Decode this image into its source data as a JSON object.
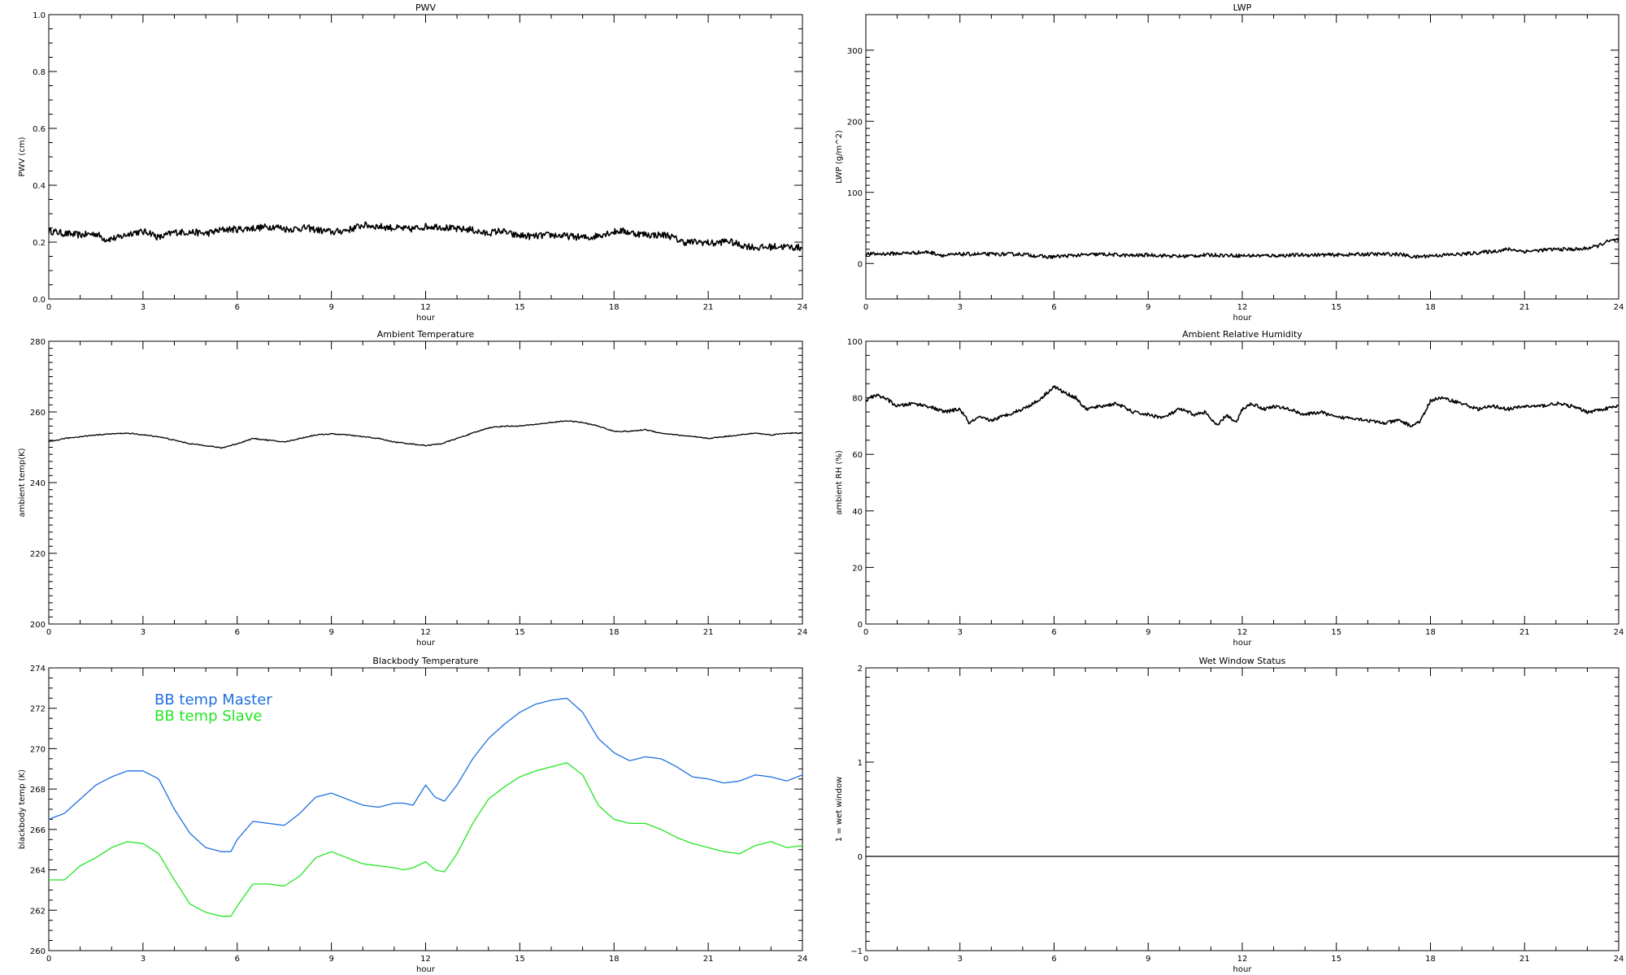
{
  "chart_data": [
    {
      "type": "line",
      "title": "PWV",
      "xlabel": "hour",
      "ylabel": "PWV (cm)",
      "xlim": [
        0,
        24
      ],
      "ylim": [
        0.0,
        1.0
      ],
      "xticks": [
        0,
        3,
        6,
        9,
        12,
        15,
        18,
        21,
        24
      ],
      "xtick_labels": [
        "0",
        "3",
        "6",
        "9",
        "12",
        "15",
        "18",
        "21",
        "24"
      ],
      "yticks": [
        0.0,
        0.2,
        0.4,
        0.6,
        0.8,
        1.0
      ],
      "ytick_labels": [
        "0.0",
        "0.2",
        "0.4",
        "0.6",
        "0.8",
        "1.0"
      ],
      "noise": 0.012,
      "series": [
        {
          "color": "#000000",
          "x": [
            0,
            0.5,
            1,
            1.5,
            1.8,
            2.2,
            2.7,
            3.2,
            3.5,
            4,
            4.6,
            5,
            5.6,
            6,
            6.6,
            7.2,
            7.6,
            8.2,
            8.7,
            9.1,
            9.6,
            10,
            10.5,
            11,
            11.5,
            12,
            12.4,
            13,
            13.4,
            13.9,
            14.4,
            14.8,
            15.4,
            16,
            16.6,
            17.2,
            17.7,
            18.2,
            18.7,
            19.2,
            19.7,
            20.2,
            20.8,
            21.2,
            21.6,
            22,
            22.6,
            23.2,
            24
          ],
          "y": [
            0.24,
            0.23,
            0.225,
            0.23,
            0.21,
            0.215,
            0.235,
            0.235,
            0.215,
            0.235,
            0.235,
            0.23,
            0.245,
            0.245,
            0.25,
            0.255,
            0.245,
            0.25,
            0.24,
            0.235,
            0.245,
            0.26,
            0.255,
            0.25,
            0.245,
            0.255,
            0.255,
            0.245,
            0.245,
            0.23,
            0.24,
            0.225,
            0.22,
            0.225,
            0.22,
            0.215,
            0.23,
            0.24,
            0.23,
            0.225,
            0.225,
            0.2,
            0.2,
            0.195,
            0.205,
            0.19,
            0.18,
            0.185,
            0.18
          ]
        }
      ]
    },
    {
      "type": "line",
      "title": "LWP",
      "xlabel": "hour",
      "ylabel": "LWP (g/m^2)",
      "xlim": [
        0,
        24
      ],
      "ylim": [
        -50,
        350
      ],
      "xticks": [
        0,
        3,
        6,
        9,
        12,
        15,
        18,
        21,
        24
      ],
      "xtick_labels": [
        "0",
        "3",
        "6",
        "9",
        "12",
        "15",
        "18",
        "21",
        "24"
      ],
      "yticks": [
        0,
        100,
        200,
        300
      ],
      "ytick_labels": [
        "0",
        "100",
        "200",
        "300"
      ],
      "noise": 2.5,
      "series": [
        {
          "color": "#000000",
          "x": [
            0,
            1,
            2,
            2.5,
            3,
            4,
            5,
            5.8,
            6.5,
            7.5,
            8.5,
            9,
            10,
            11,
            12,
            13,
            14,
            15,
            16,
            17,
            17.5,
            18,
            19,
            20,
            20.5,
            21,
            22,
            22.8,
            23.3,
            23.6,
            24
          ],
          "y": [
            13,
            14,
            16,
            11,
            13,
            13,
            13,
            9,
            11,
            13,
            11,
            12,
            10,
            12,
            11,
            11,
            12,
            12,
            13,
            13,
            9,
            11,
            13,
            17,
            20,
            17,
            20,
            20,
            24,
            30,
            34
          ]
        }
      ]
    },
    {
      "type": "line",
      "title": "Ambient Temperature",
      "xlabel": "hour",
      "ylabel": "ambient temp(K)",
      "xlim": [
        0,
        24
      ],
      "ylim": [
        200,
        280
      ],
      "xticks": [
        0,
        3,
        6,
        9,
        12,
        15,
        18,
        21,
        24
      ],
      "xtick_labels": [
        "0",
        "3",
        "6",
        "9",
        "12",
        "15",
        "18",
        "21",
        "24"
      ],
      "yticks": [
        200,
        220,
        240,
        260,
        280
      ],
      "ytick_labels": [
        "200",
        "220",
        "240",
        "260",
        "280"
      ],
      "noise": 0.15,
      "series": [
        {
          "color": "#000000",
          "x": [
            0,
            0.5,
            1,
            1.5,
            2,
            2.5,
            3,
            3.5,
            4,
            4.5,
            5,
            5.5,
            6,
            6.5,
            7,
            7.5,
            8,
            8.5,
            9,
            9.5,
            10,
            10.5,
            11,
            11.5,
            12,
            12.5,
            13,
            13.5,
            14,
            14.5,
            15,
            15.5,
            16,
            16.5,
            17,
            17.5,
            18,
            18.5,
            19,
            19.5,
            20,
            20.5,
            21,
            21.5,
            22,
            22.5,
            23,
            23.5,
            24
          ],
          "y": [
            251.5,
            252.5,
            253,
            253.5,
            253.8,
            254,
            253.5,
            253,
            252,
            251,
            250.5,
            249.8,
            251,
            252.5,
            252,
            251.5,
            252.5,
            253.5,
            253.8,
            253.5,
            253,
            252.5,
            251.5,
            251,
            250.5,
            251,
            252.5,
            254,
            255.5,
            256,
            256,
            256.5,
            257,
            257.5,
            257,
            256,
            254.5,
            254.5,
            255,
            254,
            253.5,
            253,
            252.5,
            253,
            253.5,
            254,
            253.5,
            254,
            254
          ]
        }
      ]
    },
    {
      "type": "line",
      "title": "Ambient Relative Humidity",
      "xlabel": "hour",
      "ylabel": "ambient RH (%)",
      "xlim": [
        0,
        24
      ],
      "ylim": [
        0,
        100
      ],
      "xticks": [
        0,
        3,
        6,
        9,
        12,
        15,
        18,
        21,
        24
      ],
      "xtick_labels": [
        "0",
        "3",
        "6",
        "9",
        "12",
        "15",
        "18",
        "21",
        "24"
      ],
      "yticks": [
        0,
        20,
        40,
        60,
        80,
        100
      ],
      "ytick_labels": [
        "0",
        "20",
        "40",
        "60",
        "80",
        "100"
      ],
      "noise": 0.6,
      "series": [
        {
          "color": "#000000",
          "x": [
            0,
            0.3,
            0.6,
            1,
            1.5,
            2,
            2.5,
            3,
            3.3,
            3.6,
            4,
            4.5,
            5,
            5.5,
            5.8,
            6,
            6.3,
            6.7,
            7,
            7.5,
            8,
            8.5,
            9,
            9.5,
            10,
            10.5,
            10.8,
            11.2,
            11.5,
            11.8,
            12,
            12.3,
            12.7,
            13,
            13.5,
            14,
            14.5,
            15,
            15.5,
            16,
            16.5,
            17,
            17.4,
            17.7,
            18,
            18.3,
            18.7,
            19,
            19.5,
            20,
            20.5,
            21,
            21.5,
            22,
            22.5,
            23,
            23.5,
            24
          ],
          "y": [
            79,
            81,
            80,
            77,
            78,
            77,
            75,
            76,
            71,
            73,
            72,
            74,
            76,
            79,
            82,
            84,
            82,
            80,
            76,
            77,
            78,
            75,
            74,
            73,
            76,
            74,
            75,
            70,
            74,
            71,
            76,
            78,
            76,
            77,
            76,
            74,
            75,
            73,
            73,
            72,
            71,
            72,
            70,
            72,
            79,
            80,
            79,
            78,
            76,
            77,
            76,
            77,
            77,
            78,
            77,
            75,
            76,
            77
          ]
        }
      ]
    },
    {
      "type": "line",
      "title": "Blackbody Temperature",
      "xlabel": "hour",
      "ylabel": "blackbody temp (K)",
      "xlim": [
        0,
        24
      ],
      "ylim": [
        260,
        274
      ],
      "xticks": [
        0,
        3,
        6,
        9,
        12,
        15,
        18,
        21,
        24
      ],
      "xtick_labels": [
        "0",
        "3",
        "6",
        "9",
        "12",
        "15",
        "18",
        "21",
        "24"
      ],
      "yticks": [
        260,
        262,
        264,
        266,
        268,
        270,
        272,
        274
      ],
      "ytick_labels": [
        "260",
        "262",
        "264",
        "266",
        "268",
        "270",
        "272",
        "274"
      ],
      "noise": 0,
      "legend": {
        "location": "upper-left"
      },
      "series": [
        {
          "name": "BB temp Master",
          "color": "#1f6fe0",
          "x": [
            0,
            0.5,
            1,
            1.5,
            2,
            2.5,
            3,
            3.5,
            4,
            4.5,
            5,
            5.5,
            5.8,
            6,
            6.5,
            7,
            7.5,
            8,
            8.5,
            9,
            9.5,
            10,
            10.5,
            11,
            11.3,
            11.6,
            12,
            12.3,
            12.6,
            13,
            13.5,
            14,
            14.5,
            15,
            15.5,
            16,
            16.5,
            17,
            17.5,
            18,
            18.5,
            19,
            19.5,
            20,
            20.5,
            21,
            21.5,
            22,
            22.5,
            23,
            23.5,
            24
          ],
          "y": [
            266.5,
            266.8,
            267.5,
            268.2,
            268.6,
            268.9,
            268.9,
            268.5,
            267,
            265.8,
            265.1,
            264.9,
            264.9,
            265.5,
            266.4,
            266.3,
            266.2,
            266.8,
            267.6,
            267.8,
            267.5,
            267.2,
            267.1,
            267.3,
            267.3,
            267.2,
            268.2,
            267.6,
            267.4,
            268.2,
            269.5,
            270.5,
            271.2,
            271.8,
            272.2,
            272.4,
            272.5,
            271.8,
            270.5,
            269.8,
            269.4,
            269.6,
            269.5,
            269.1,
            268.6,
            268.5,
            268.3,
            268.4,
            268.7,
            268.6,
            268.4,
            268.7
          ]
        },
        {
          "name": "BB temp Slave",
          "color": "#22e622",
          "x": [
            0,
            0.5,
            1,
            1.5,
            2,
            2.5,
            3,
            3.5,
            4,
            4.5,
            5,
            5.5,
            5.8,
            6,
            6.5,
            7,
            7.5,
            8,
            8.5,
            9,
            9.5,
            10,
            10.5,
            11,
            11.3,
            11.6,
            12,
            12.3,
            12.6,
            13,
            13.5,
            14,
            14.5,
            15,
            15.5,
            16,
            16.5,
            17,
            17.5,
            18,
            18.5,
            19,
            19.5,
            20,
            20.5,
            21,
            21.5,
            22,
            22.5,
            23,
            23.5,
            24
          ],
          "y": [
            263.5,
            263.5,
            264.2,
            264.6,
            265.1,
            265.4,
            265.3,
            264.8,
            263.5,
            262.3,
            261.9,
            261.7,
            261.7,
            262.2,
            263.3,
            263.3,
            263.2,
            263.7,
            264.6,
            264.9,
            264.6,
            264.3,
            264.2,
            264.1,
            264.0,
            264.1,
            264.4,
            264.0,
            263.9,
            264.8,
            266.3,
            267.5,
            268.1,
            268.6,
            268.9,
            269.1,
            269.3,
            268.7,
            267.2,
            266.5,
            266.3,
            266.3,
            266.0,
            265.6,
            265.3,
            265.1,
            264.9,
            264.8,
            265.2,
            265.4,
            265.1,
            265.2
          ]
        }
      ]
    },
    {
      "type": "line",
      "title": "Wet Window Status",
      "xlabel": "hour",
      "ylabel": "1 = wet window",
      "xlim": [
        0,
        24
      ],
      "ylim": [
        -1,
        2
      ],
      "xticks": [
        0,
        3,
        6,
        9,
        12,
        15,
        18,
        21,
        24
      ],
      "xtick_labels": [
        "0",
        "3",
        "6",
        "9",
        "12",
        "15",
        "18",
        "21",
        "24"
      ],
      "yticks": [
        -1,
        0,
        1,
        2
      ],
      "ytick_labels": [
        "−1",
        "0",
        "1",
        "2"
      ],
      "noise": 0,
      "series": [
        {
          "color": "#000000",
          "x": [
            0,
            24
          ],
          "y": [
            0,
            0
          ]
        }
      ]
    }
  ]
}
